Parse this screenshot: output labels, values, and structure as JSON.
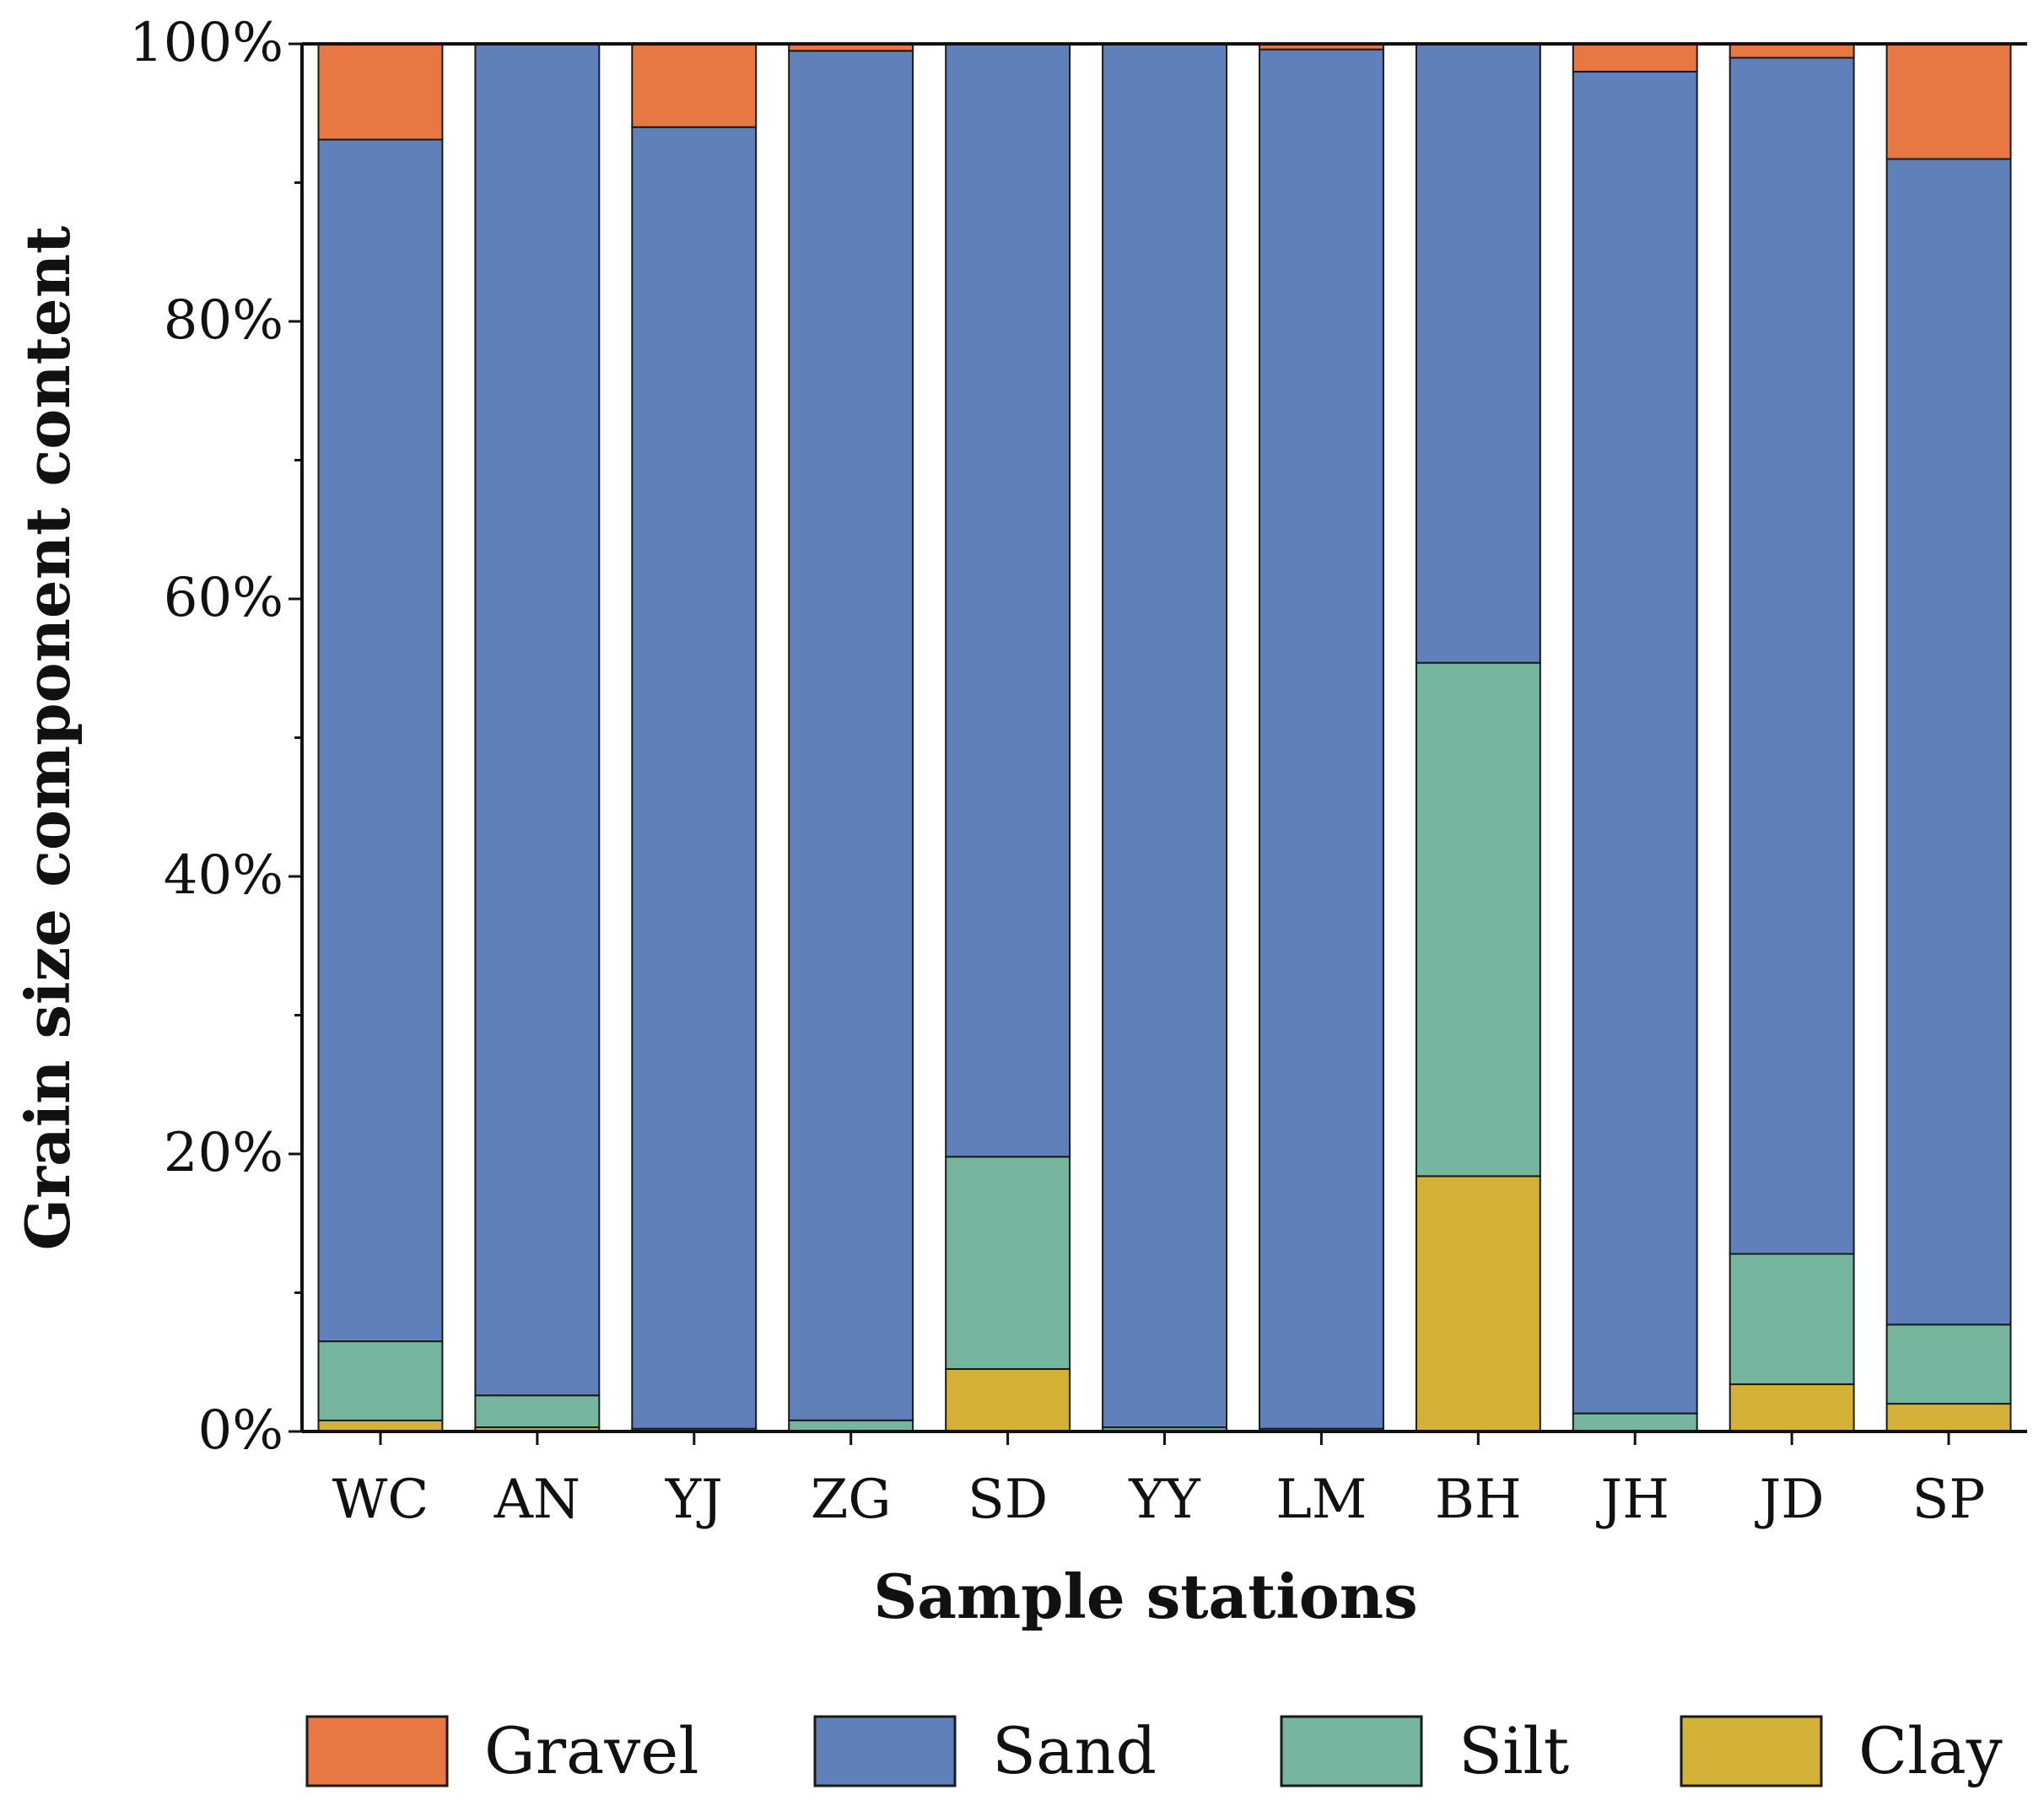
{
  "chart_data": {
    "type": "bar",
    "stacked": true,
    "xlabel": "Sample stations",
    "ylabel": "Grain size component content",
    "ylim": [
      0,
      100
    ],
    "yticks": [
      "0%",
      "20%",
      "40%",
      "60%",
      "80%",
      "100%"
    ],
    "categories": [
      "WC",
      "AN",
      "YJ",
      "ZG",
      "SD",
      "YY",
      "LM",
      "BH",
      "JH",
      "JD",
      "SP"
    ],
    "legend_position": "bottom",
    "series": [
      {
        "name": "Clay",
        "color": "#d2b136",
        "values": [
          0.8,
          0.3,
          0.0,
          0.0,
          4.5,
          0.0,
          0.0,
          18.4,
          0.0,
          3.4,
          2.0
        ]
      },
      {
        "name": "Silt",
        "color": "#76b59e",
        "values": [
          5.7,
          2.3,
          0.2,
          0.8,
          15.3,
          0.3,
          0.2,
          37.0,
          1.3,
          9.4,
          5.7
        ]
      },
      {
        "name": "Sand",
        "color": "#5f80b8",
        "values": [
          86.6,
          97.4,
          93.8,
          98.7,
          80.2,
          99.7,
          99.4,
          44.6,
          96.7,
          86.2,
          84.0
        ]
      },
      {
        "name": "Gravel",
        "color": "#e87843",
        "values": [
          6.9,
          0.0,
          6.0,
          0.5,
          0.0,
          0.0,
          0.4,
          0.0,
          2.0,
          1.0,
          8.3
        ]
      }
    ],
    "legend_order": [
      "Gravel",
      "Sand",
      "Silt",
      "Clay"
    ]
  }
}
